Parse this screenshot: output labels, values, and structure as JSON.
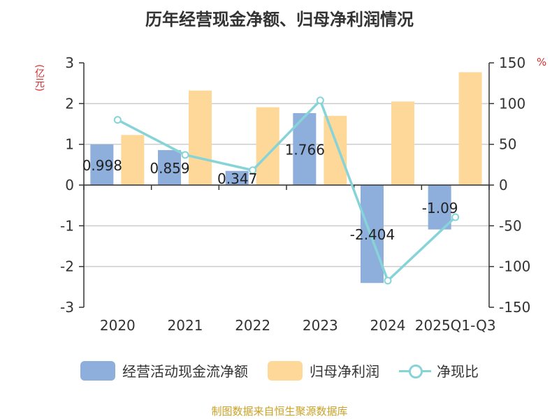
{
  "chart_data": {
    "type": "bar",
    "title": "历年经营现金净额、归母净利润情况",
    "categories": [
      "2020",
      "2021",
      "2022",
      "2023",
      "2024",
      "2025Q1-Q3"
    ],
    "left_axis": {
      "unit": "(亿元)",
      "ylim": [
        -3,
        3
      ],
      "ticks": [
        3,
        2,
        1,
        0,
        -1,
        -2,
        -3
      ]
    },
    "right_axis": {
      "unit": "%",
      "ylim": [
        -150,
        150
      ],
      "ticks": [
        150,
        100,
        50,
        0,
        -50,
        -100,
        -150
      ]
    },
    "series": [
      {
        "name": "经营活动现金流净额",
        "type": "bar",
        "axis": "left",
        "color": "#8eaedc",
        "values": [
          0.998,
          0.859,
          0.347,
          1.766,
          -2.404,
          -1.09
        ],
        "labels": [
          "0.998",
          "0.859",
          "0.347",
          "1.766",
          "-2.404",
          "-1.09"
        ]
      },
      {
        "name": "归母净利润",
        "type": "bar",
        "axis": "left",
        "color": "#fdd898",
        "values": [
          1.23,
          2.32,
          1.91,
          1.7,
          2.05,
          2.77
        ]
      },
      {
        "name": "净现比",
        "type": "line",
        "axis": "right",
        "color": "#86d4d8",
        "values": [
          80.0,
          37.0,
          18.2,
          103.9,
          -117.3,
          -39.4
        ]
      }
    ],
    "grid": true
  },
  "legend": {
    "cash": "经营活动现金流净额",
    "profit": "归母净利润",
    "ratio": "净现比"
  },
  "source": "制图数据来自恒生聚源数据库"
}
